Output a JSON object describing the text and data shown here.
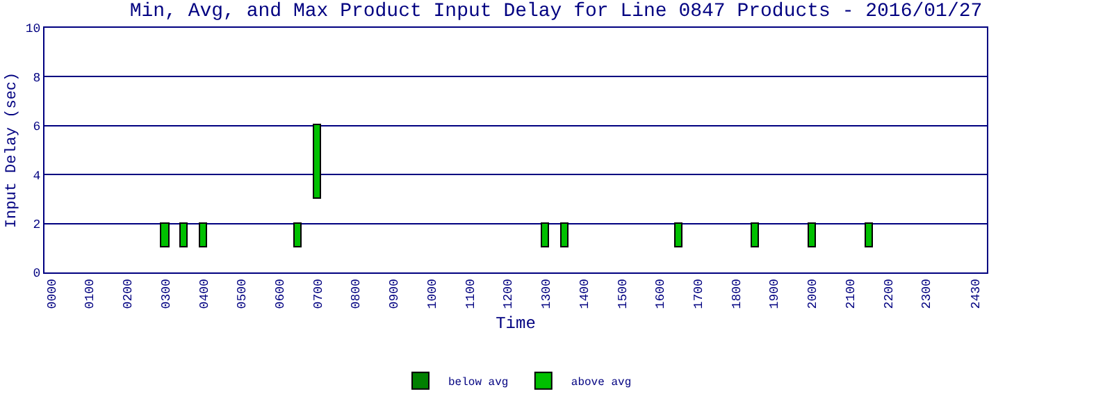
{
  "chart_data": {
    "type": "bar",
    "title": "Min, Avg, and Max Product Input Delay for Line 0847 Products - 2016/01/27",
    "xlabel": "Time",
    "ylabel": "Input Delay (sec)",
    "x": [
      300,
      350,
      400,
      650,
      700,
      1300,
      1350,
      1650,
      1850,
      2000,
      2150
    ],
    "series": [
      {
        "name": "below avg",
        "color": "#008000",
        "values": [
          null,
          null,
          null,
          null,
          null,
          null,
          null,
          null,
          null,
          null,
          null
        ]
      },
      {
        "name": "above avg",
        "color": "#00c000",
        "base": [
          1,
          1,
          1,
          1,
          3,
          1,
          1,
          1,
          1,
          1,
          1
        ],
        "values": [
          1,
          1,
          1,
          1,
          3,
          1,
          1,
          1,
          1,
          1,
          1
        ]
      }
    ],
    "xlim": [
      -18,
      2460
    ],
    "xticks": [
      {
        "value": 0,
        "label": "0000"
      },
      {
        "value": 100,
        "label": "0100"
      },
      {
        "value": 200,
        "label": "0200"
      },
      {
        "value": 300,
        "label": "0300"
      },
      {
        "value": 400,
        "label": "0400"
      },
      {
        "value": 500,
        "label": "0500"
      },
      {
        "value": 600,
        "label": "0600"
      },
      {
        "value": 700,
        "label": "0700"
      },
      {
        "value": 800,
        "label": "0800"
      },
      {
        "value": 900,
        "label": "0900"
      },
      1000,
      1100,
      1200,
      1300,
      1400,
      1500,
      1600,
      1700,
      1800,
      1900,
      2000,
      2100,
      2200,
      2300,
      2430
    ],
    "ylim": [
      0,
      10
    ],
    "yticks": [
      0,
      2,
      4,
      6,
      8,
      10
    ],
    "grid": "y",
    "legend": "bottom"
  }
}
